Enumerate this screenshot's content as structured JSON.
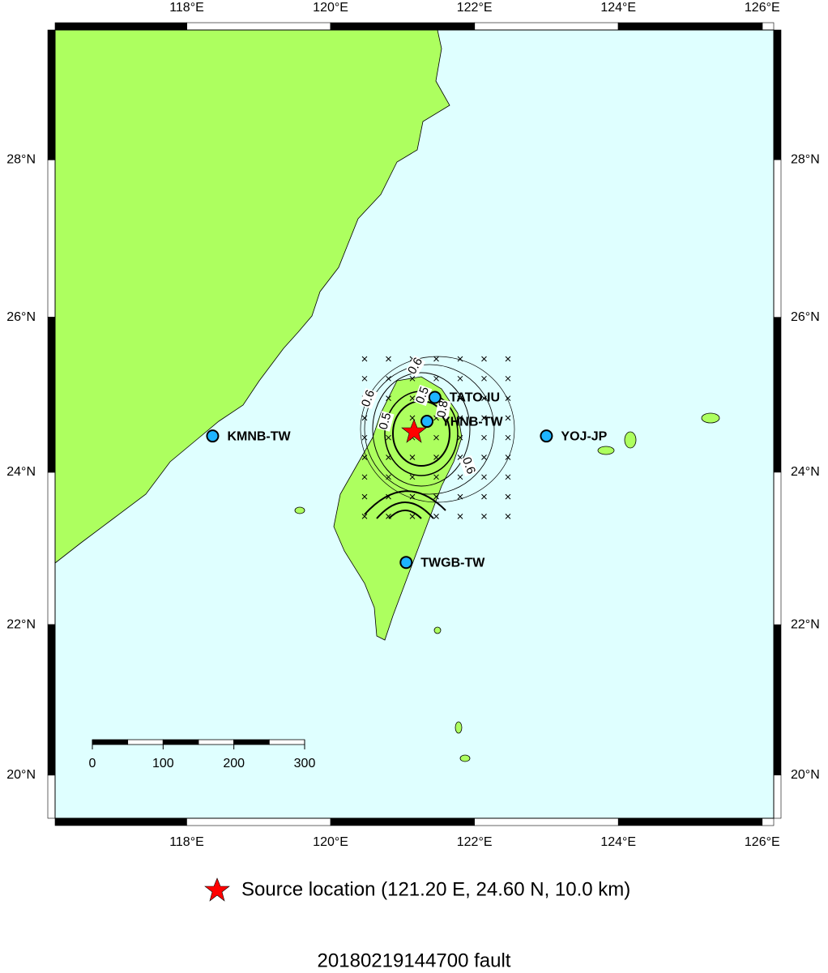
{
  "map": {
    "xlim": [
      116.17,
      126.16
    ],
    "ylim": [
      19.42,
      29.62
    ],
    "xticks": [
      {
        "value": 118,
        "label": "118°E"
      },
      {
        "value": 120,
        "label": "120°E"
      },
      {
        "value": 122,
        "label": "122°E"
      },
      {
        "value": 124,
        "label": "124°E"
      },
      {
        "value": 126,
        "label": "126°E"
      }
    ],
    "yticks": [
      {
        "value": 20,
        "label": "20°N"
      },
      {
        "value": 22,
        "label": "22°N"
      },
      {
        "value": 24,
        "label": "24°N"
      },
      {
        "value": 26,
        "label": "26°N"
      },
      {
        "value": 28,
        "label": "28°N"
      }
    ],
    "stations": [
      {
        "name": "KMNB-TW",
        "lon": 118.36,
        "lat": 24.47
      },
      {
        "name": "TATO-IU",
        "lon": 121.45,
        "lat": 24.97
      },
      {
        "name": "YHNB-TW",
        "lon": 121.34,
        "lat": 24.66
      },
      {
        "name": "YOJ-JP",
        "lon": 123.0,
        "lat": 24.47
      },
      {
        "name": "TWGB-TW",
        "lon": 121.05,
        "lat": 22.82
      }
    ],
    "contour_labels": [
      "0.6",
      "0.6",
      "0.5",
      "0.5",
      "0.8",
      "0.6"
    ],
    "scale_bar": [
      0,
      100,
      200,
      300
    ]
  },
  "legend": "Source location (121.20 E, 24.60 N, 10.0 km)",
  "title": "20180219144700 fault"
}
